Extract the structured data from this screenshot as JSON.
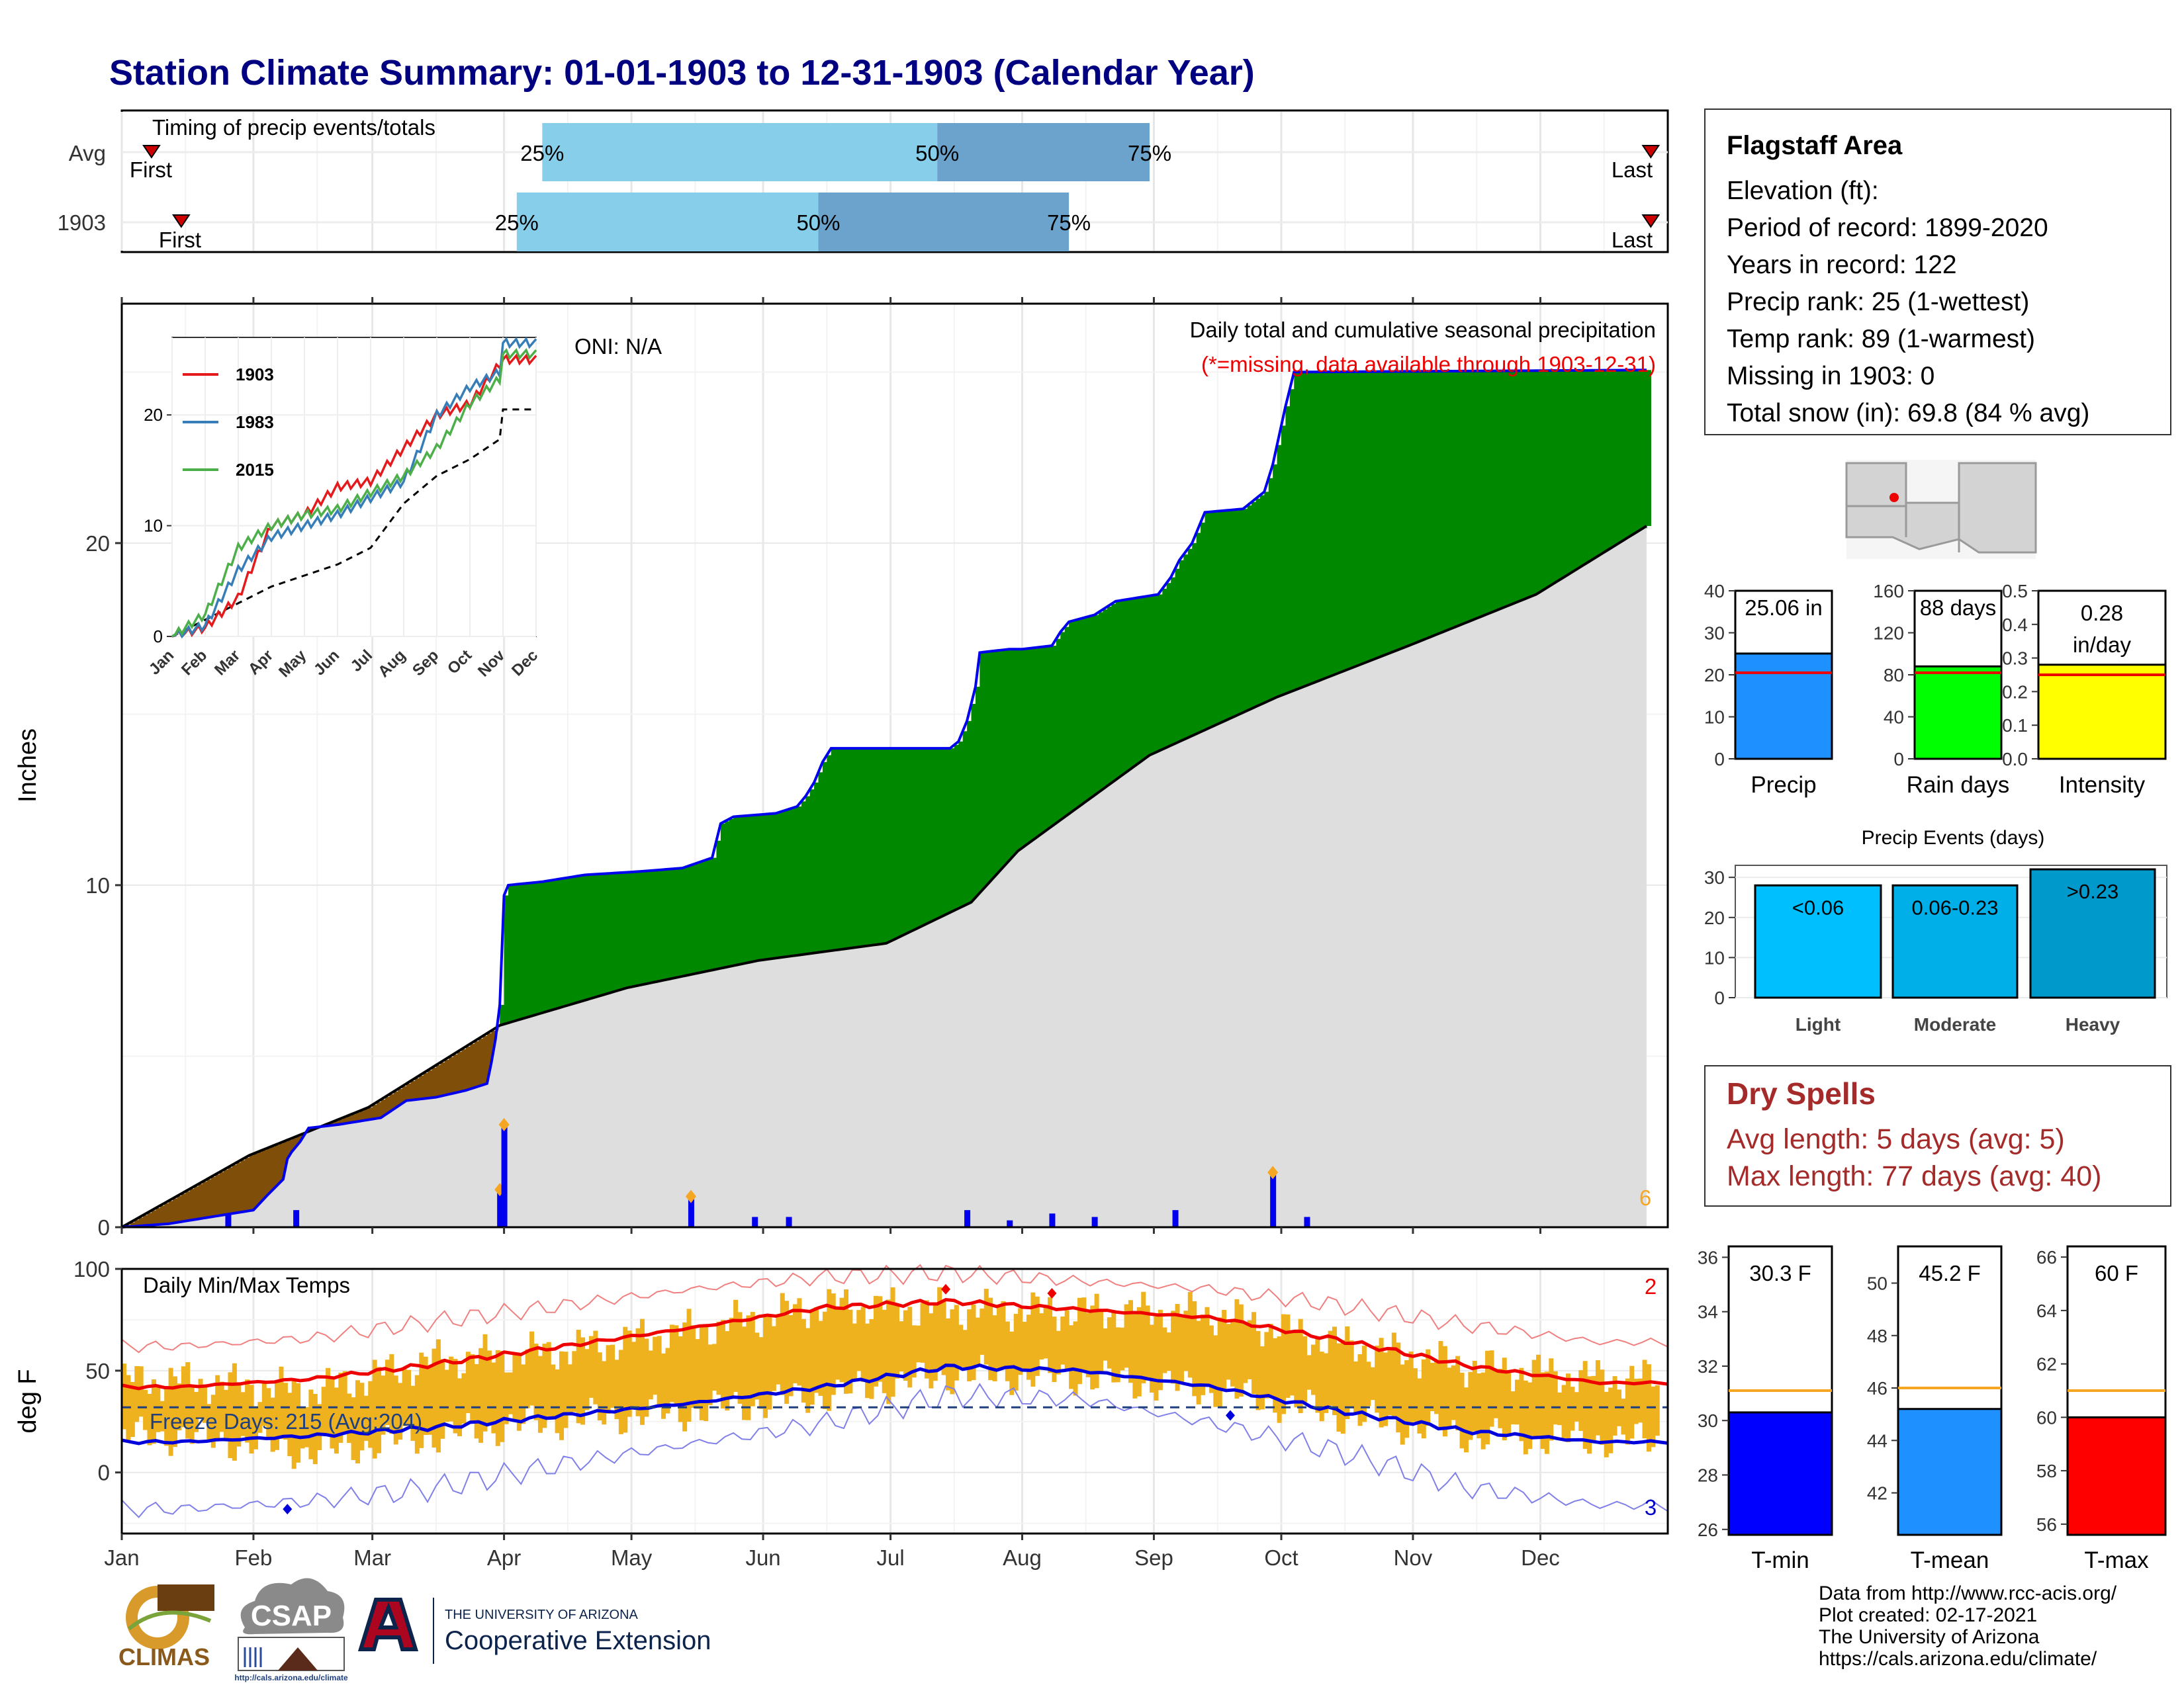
{
  "title": "Station Climate Summary: 01-01-1903 to 12-31-1903 (Calendar Year)",
  "timing": {
    "label": "Timing of precip events/totals",
    "rows": [
      "Avg",
      "1903"
    ],
    "first_label": "First",
    "last_label": "Last",
    "pct_labels": [
      "25%",
      "50%",
      "75%"
    ]
  },
  "main": {
    "ylabel": "Inches",
    "oni": "ONI: N/A",
    "caption_line1": "Daily total and cumulative seasonal precipitation",
    "caption_line2": "(*=missing, data available through 1903-12-31)",
    "corner_count": "6"
  },
  "temps": {
    "ylabel": "deg F",
    "label": "Daily Min/Max Temps",
    "freeze": "Freeze Days: 215 (Avg:204)",
    "count_top": "2",
    "count_bottom": "3"
  },
  "station": {
    "name": "Flagstaff Area",
    "elevation": "Elevation (ft):",
    "period": "Period of record: 1899-2020",
    "years": "Years in record: 122",
    "precip_rank": "Precip rank: 25 (1-wettest)",
    "temp_rank": "Temp rank: 89 (1-warmest)",
    "missing": "Missing in 1903: 0",
    "snow": "Total snow (in): 69.8 (84 % avg)"
  },
  "dry_spells": {
    "title": "Dry Spells",
    "avg": "Avg length: 5 days (avg: 5)",
    "max": "Max length: 77 days (avg: 40)"
  },
  "credits": {
    "line1": "Data from http://www.rcc-acis.org/",
    "line2": "Plot created: 02-17-2021",
    "line3": "The University of Arizona",
    "line4": "https://cals.arizona.edu/climate/"
  },
  "logos": {
    "climas": "CLIMAS",
    "csap": "CSAP",
    "csap_url": "http://cals.arizona.edu/climate",
    "ua_small": "THE UNIVERSITY OF ARIZONA",
    "ua_big": "Cooperative Extension"
  },
  "colors": {
    "green": "#008800",
    "brown": "#7f4f0a",
    "grey": "#dedede",
    "blue": "#0000ee",
    "orange": "#efb21f",
    "red": "#ee0000",
    "light_blue": "#87ceeb",
    "steel_blue": "#6ba3cc"
  },
  "chart_data": [
    {
      "type": "bar",
      "name": "timing",
      "rows": [
        {
          "name": "Avg",
          "first": "Jan 8",
          "q25": "Apr 10",
          "q50": "Jul 12",
          "q75": "Aug 31",
          "last": "Dec 27"
        },
        {
          "name": "1903",
          "first": "Jan 15",
          "q25": "Apr 4",
          "q50": "Jun 14",
          "q75": "Aug 12",
          "last": "Dec 27"
        }
      ]
    },
    {
      "type": "area",
      "name": "cumulative precipitation",
      "xlabel": "",
      "ylabel": "Inches",
      "ylim": [
        0,
        27
      ],
      "yticks": [
        0,
        10,
        20
      ],
      "xticks": [
        "Jan",
        "Feb",
        "Mar",
        "Apr",
        "May",
        "Jun",
        "Jul",
        "Aug",
        "Sep",
        "Oct",
        "Nov",
        "Dec"
      ],
      "series": [
        {
          "name": "1903 cumulative",
          "points": [
            [
              1,
              0
            ],
            [
              12,
              0.1
            ],
            [
              32,
              0.5
            ],
            [
              35,
              0.9
            ],
            [
              39,
              1.4
            ],
            [
              40,
              2.0
            ],
            [
              41,
              2.2
            ],
            [
              43,
              2.5
            ],
            [
              45,
              2.9
            ],
            [
              52,
              3.0
            ],
            [
              62,
              3.2
            ],
            [
              68,
              3.7
            ],
            [
              75,
              3.8
            ],
            [
              82,
              4.0
            ],
            [
              87,
              4.2
            ],
            [
              88,
              4.8
            ],
            [
              89,
              5.5
            ],
            [
              90,
              6.5
            ],
            [
              91,
              9.7
            ],
            [
              92,
              10.0
            ],
            [
              100,
              10.1
            ],
            [
              110,
              10.3
            ],
            [
              123,
              10.4
            ],
            [
              133,
              10.5
            ],
            [
              140,
              10.8
            ],
            [
              142,
              11.8
            ],
            [
              145,
              12.0
            ],
            [
              155,
              12.1
            ],
            [
              160,
              12.3
            ],
            [
              162,
              12.6
            ],
            [
              164,
              13.0
            ],
            [
              166,
              13.6
            ],
            [
              168,
              14.0
            ],
            [
              180,
              14.0
            ],
            [
              196,
              14.0
            ],
            [
              198,
              14.2
            ],
            [
              200,
              14.8
            ],
            [
              202,
              15.8
            ],
            [
              203,
              16.8
            ],
            [
              210,
              16.9
            ],
            [
              213,
              16.9
            ],
            [
              220,
              17.0
            ],
            [
              222,
              17.4
            ],
            [
              224,
              17.7
            ],
            [
              230,
              17.9
            ],
            [
              235,
              18.3
            ],
            [
              245,
              18.5
            ],
            [
              248,
              19.0
            ],
            [
              250,
              19.5
            ],
            [
              253,
              20.0
            ],
            [
              256,
              20.9
            ],
            [
              265,
              21.0
            ],
            [
              270,
              21.5
            ],
            [
              272,
              22.3
            ],
            [
              275,
              24.0
            ],
            [
              277,
              25.0
            ],
            [
              360,
              25.06
            ]
          ]
        },
        {
          "name": "Average cumulative",
          "points": [
            [
              1,
              0
            ],
            [
              31,
              2.1
            ],
            [
              59,
              3.5
            ],
            [
              90,
              5.9
            ],
            [
              120,
              7.0
            ],
            [
              151,
              7.8
            ],
            [
              181,
              8.3
            ],
            [
              201,
              9.5
            ],
            [
              212,
              11.0
            ],
            [
              243,
              13.8
            ],
            [
              273,
              15.5
            ],
            [
              304,
              17.0
            ],
            [
              334,
              18.5
            ],
            [
              360,
              20.5
            ]
          ]
        }
      ],
      "daily_bars": [
        [
          26,
          0.4
        ],
        [
          42,
          0.5
        ],
        [
          90,
          1.1
        ],
        [
          91,
          3.0
        ],
        [
          135,
          0.9
        ],
        [
          150,
          0.3
        ],
        [
          158,
          0.3
        ],
        [
          200,
          0.5
        ],
        [
          210,
          0.2
        ],
        [
          220,
          0.4
        ],
        [
          230,
          0.3
        ],
        [
          249,
          0.5
        ],
        [
          272,
          1.6
        ],
        [
          280,
          0.3
        ]
      ],
      "inset": {
        "series": [
          {
            "name": "1903",
            "values": [
              0,
              0.8,
              3.5,
              10,
              11,
              13.5,
              14,
              17,
              20,
              21,
              25,
              25
            ]
          },
          {
            "name": "1983",
            "values": [
              0,
              1,
              6,
              9,
              10,
              11,
              12.5,
              14,
              20,
              22.5,
              24,
              26.5
            ]
          },
          {
            "name": "2015",
            "values": [
              0,
              2,
              8,
              10,
              11,
              11.5,
              13,
              14.5,
              17,
              21,
              23.5,
              25.5
            ]
          }
        ],
        "average": [
          0,
          1.5,
          3,
          4.5,
          5.5,
          6.5,
          8,
          12,
          14.5,
          16,
          18,
          20.5
        ],
        "yticks": [
          0,
          10,
          20
        ],
        "xticks": [
          "Jan",
          "Feb",
          "Mar",
          "Apr",
          "May",
          "Jun",
          "Jul",
          "Aug",
          "Sep",
          "Oct",
          "Nov",
          "Dec"
        ]
      }
    },
    {
      "type": "line",
      "name": "daily temperatures",
      "ylabel": "deg F",
      "ylim": [
        -30,
        100
      ],
      "yticks": [
        0,
        50,
        100
      ],
      "freeze_line": 32,
      "series": [
        {
          "name": "avg max",
          "monthly": [
            42,
            46,
            53,
            62,
            71,
            81,
            84,
            80,
            76,
            65,
            52,
            44
          ]
        },
        {
          "name": "avg min",
          "monthly": [
            15,
            18,
            22,
            28,
            34,
            42,
            52,
            50,
            42,
            30,
            20,
            15
          ]
        },
        {
          "name": "record max",
          "monthly": [
            62,
            66,
            74,
            82,
            90,
            96,
            98,
            94,
            90,
            82,
            72,
            64
          ]
        },
        {
          "name": "record min",
          "monthly": [
            -18,
            -14,
            -8,
            4,
            14,
            24,
            38,
            36,
            24,
            10,
            -8,
            -16
          ]
        },
        {
          "name": "1903 max",
          "monthly": [
            45,
            40,
            55,
            60,
            70,
            82,
            80,
            79,
            78,
            63,
            52,
            46
          ]
        },
        {
          "name": "1903 min",
          "monthly": [
            18,
            10,
            18,
            26,
            30,
            38,
            48,
            47,
            40,
            28,
            18,
            16
          ]
        }
      ]
    },
    {
      "type": "bar",
      "name": "totals",
      "panels": [
        {
          "label": "Precip",
          "value_text": "25.06 in",
          "value": 25.06,
          "average": 20.5,
          "ylim": [
            0,
            40
          ],
          "yticks": [
            0,
            10,
            20,
            30,
            40
          ],
          "color": "#1e90ff"
        },
        {
          "label": "Rain days",
          "value_text": "88 days",
          "value": 88,
          "average": 82,
          "ylim": [
            0,
            160
          ],
          "yticks": [
            0,
            40,
            80,
            120,
            160
          ],
          "color": "#00ff00"
        },
        {
          "label": "Intensity",
          "value_text": "0.28\nin/day",
          "value": 0.28,
          "average": 0.25,
          "ylim": [
            0,
            0.5
          ],
          "yticks": [
            0.0,
            0.1,
            0.2,
            0.3,
            0.4,
            0.5
          ],
          "color": "#ffff00"
        }
      ]
    },
    {
      "type": "bar",
      "name": "precip events",
      "title": "Precip Events (days)",
      "categories": [
        "Light",
        "Moderate",
        "Heavy"
      ],
      "bar_labels": [
        "<0.06",
        "0.06-0.23",
        ">0.23"
      ],
      "values": [
        28,
        28,
        32
      ],
      "ylim": [
        0,
        33
      ],
      "yticks": [
        0,
        10,
        20,
        30
      ]
    },
    {
      "type": "bar",
      "name": "temperature means",
      "panels": [
        {
          "label": "T-min",
          "value_text": "30.3 F",
          "value": 30.3,
          "average": 31.1,
          "ylim": [
            25.8,
            36.4
          ],
          "yticks": [
            26,
            28,
            30,
            32,
            34,
            36
          ],
          "color": "#0000ff"
        },
        {
          "label": "T-mean",
          "value_text": "45.2 F",
          "value": 45.2,
          "average": 46.0,
          "ylim": [
            40.4,
            51.4
          ],
          "yticks": [
            42,
            44,
            46,
            48,
            50
          ],
          "color": "#1e90ff"
        },
        {
          "label": "T-max",
          "value_text": "60 F",
          "value": 60,
          "average": 61.0,
          "ylim": [
            55.6,
            66.4
          ],
          "yticks": [
            56,
            58,
            60,
            62,
            64,
            66
          ],
          "color": "#ff0000"
        }
      ]
    }
  ]
}
